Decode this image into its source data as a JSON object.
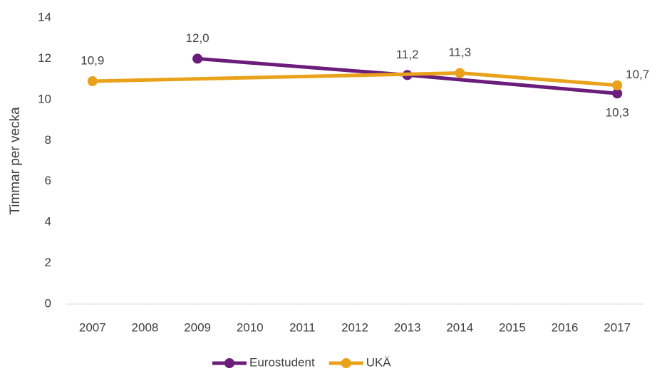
{
  "chart_data": {
    "type": "line",
    "ylabel": "Timmar per vecka",
    "xlim": [
      2006.5,
      2017.5
    ],
    "xticks": [
      2007,
      2008,
      2009,
      2010,
      2011,
      2012,
      2013,
      2014,
      2015,
      2016,
      2017
    ],
    "ylim": [
      0,
      14
    ],
    "yticks": [
      0,
      2,
      4,
      6,
      8,
      10,
      12,
      14
    ],
    "grid": false,
    "legend": "bottom",
    "series": [
      {
        "name": "Eurostudent",
        "color": "#6b1d7b",
        "x": [
          2009,
          2013,
          2017
        ],
        "values": [
          12.0,
          11.2,
          10.3
        ],
        "value_labels": [
          "12,0",
          "11,2",
          "10,3"
        ]
      },
      {
        "name": "UKÄ",
        "color": "#e9a21a",
        "x": [
          2007,
          2014,
          2017
        ],
        "values": [
          10.9,
          11.3,
          10.7
        ],
        "value_labels": [
          "10,9",
          "11,3",
          "10,7"
        ]
      }
    ]
  }
}
